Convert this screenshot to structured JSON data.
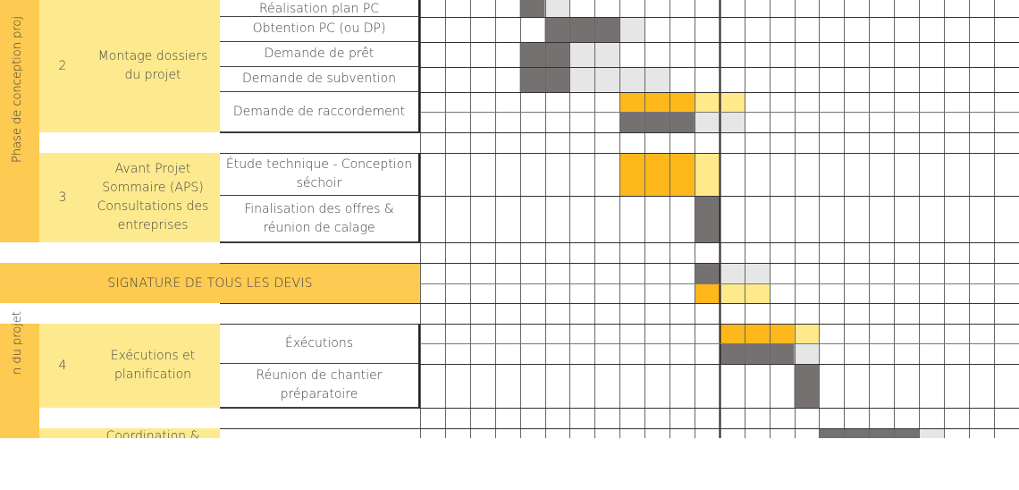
{
  "phases": [
    {
      "label": "Phase de conception proj"
    },
    {
      "label": "n du projet"
    }
  ],
  "sections": [
    {
      "number": "2",
      "title": "Montage dossiers\ndu projet"
    },
    {
      "number": "3",
      "title": "Avant Projet\nSommaire (APS)\nConsultations des\nentreprises"
    },
    {
      "number": "4",
      "title": "Exécutions et\nplanification"
    },
    {
      "number": "",
      "title": "Coordination &"
    }
  ],
  "tasks": [
    {
      "label": "Réalisation plan PC"
    },
    {
      "label": "Obtention PC (ou DP)"
    },
    {
      "label": "Demande de prêt"
    },
    {
      "label": "Demande de subvention"
    },
    {
      "label": "Demande de raccordement"
    },
    {
      "label": "Étude technique - Conception\nséchoir"
    },
    {
      "label": "Finalisation des offres &\nréunion de calage"
    },
    {
      "label": "Éxécutions"
    },
    {
      "label": "Réunion de chantier\npréparatoire"
    }
  ],
  "milestone": {
    "label": "SIGNATURE DE TOUS LES DEVIS"
  },
  "colors": {
    "dark_gray": "#767171",
    "light_gray": "#e7e6e6",
    "orange": "#ffb81c",
    "light_yellow": "#ffe98a",
    "phase_bg": "#fdca52",
    "section_bg": "#fdea8f"
  },
  "schedule": [
    {
      "task": "Réalisation plan PC",
      "cells": [
        {
          "week": 4,
          "shade": "dark_gray"
        },
        {
          "week": 5,
          "shade": "light_gray"
        }
      ]
    },
    {
      "task": "Obtention PC (ou DP)",
      "cells": [
        {
          "week": 5,
          "shade": "dark_gray"
        },
        {
          "week": 6,
          "shade": "dark_gray"
        },
        {
          "week": 7,
          "shade": "dark_gray"
        },
        {
          "week": 8,
          "shade": "light_gray"
        }
      ]
    },
    {
      "task": "Demande de prêt",
      "cells": [
        {
          "week": 4,
          "shade": "dark_gray"
        },
        {
          "week": 5,
          "shade": "dark_gray"
        },
        {
          "week": 6,
          "shade": "light_gray"
        },
        {
          "week": 7,
          "shade": "light_gray"
        }
      ]
    },
    {
      "task": "Demande de subvention",
      "cells": [
        {
          "week": 4,
          "shade": "dark_gray"
        },
        {
          "week": 5,
          "shade": "dark_gray"
        },
        {
          "week": 6,
          "shade": "light_gray"
        },
        {
          "week": 7,
          "shade": "light_gray"
        },
        {
          "week": 8,
          "shade": "light_gray"
        },
        {
          "week": 9,
          "shade": "light_gray"
        }
      ]
    },
    {
      "task": "Demande de raccordement",
      "planned": [
        {
          "week": 8,
          "shade": "orange"
        },
        {
          "week": 9,
          "shade": "orange"
        },
        {
          "week": 10,
          "shade": "orange"
        },
        {
          "week": 11,
          "shade": "light_yellow"
        },
        {
          "week": 12,
          "shade": "light_yellow"
        }
      ],
      "actual": [
        {
          "week": 8,
          "shade": "dark_gray"
        },
        {
          "week": 9,
          "shade": "dark_gray"
        },
        {
          "week": 10,
          "shade": "dark_gray"
        },
        {
          "week": 11,
          "shade": "light_gray"
        },
        {
          "week": 12,
          "shade": "light_gray"
        }
      ]
    },
    {
      "task": "Étude technique - Conception séchoir",
      "cells": [
        {
          "week": 8,
          "shade": "orange"
        },
        {
          "week": 9,
          "shade": "orange"
        },
        {
          "week": 10,
          "shade": "orange"
        },
        {
          "week": 11,
          "shade": "light_yellow"
        }
      ]
    },
    {
      "task": "Finalisation des offres & réunion de calage",
      "cells": [
        {
          "week": 11,
          "shade": "dark_gray"
        }
      ]
    },
    {
      "task": "SIGNATURE DE TOUS LES DEVIS",
      "actual": [
        {
          "week": 11,
          "shade": "dark_gray"
        },
        {
          "week": 12,
          "shade": "light_gray"
        },
        {
          "week": 13,
          "shade": "light_gray"
        }
      ],
      "planned": [
        {
          "week": 11,
          "shade": "orange"
        },
        {
          "week": 12,
          "shade": "light_yellow"
        },
        {
          "week": 13,
          "shade": "light_yellow"
        }
      ]
    },
    {
      "task": "Éxécutions",
      "planned": [
        {
          "week": 12,
          "shade": "orange"
        },
        {
          "week": 13,
          "shade": "orange"
        },
        {
          "week": 14,
          "shade": "orange"
        },
        {
          "week": 15,
          "shade": "light_yellow"
        }
      ],
      "actual": [
        {
          "week": 12,
          "shade": "dark_gray"
        },
        {
          "week": 13,
          "shade": "dark_gray"
        },
        {
          "week": 14,
          "shade": "dark_gray"
        },
        {
          "week": 15,
          "shade": "light_gray"
        }
      ]
    },
    {
      "task": "Réunion de chantier préparatoire",
      "cells": [
        {
          "week": 15,
          "shade": "dark_gray"
        }
      ]
    },
    {
      "task": "Coordination &",
      "cells": [
        {
          "week": 16,
          "shade": "dark_gray"
        },
        {
          "week": 17,
          "shade": "dark_gray"
        },
        {
          "week": 18,
          "shade": "dark_gray"
        },
        {
          "week": 19,
          "shade": "dark_gray"
        },
        {
          "week": 20,
          "shade": "light_gray"
        }
      ]
    }
  ]
}
